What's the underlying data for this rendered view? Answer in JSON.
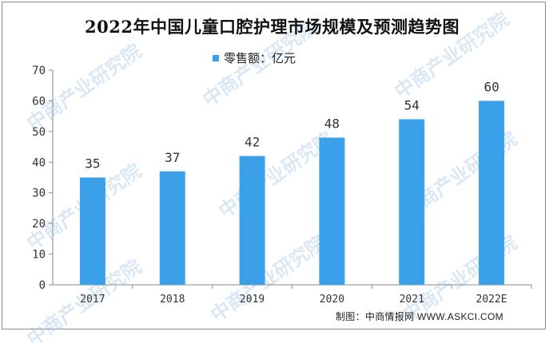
{
  "chart_data": {
    "type": "bar",
    "title": "2022年中国儿童口腔护理市场规模及预测趋势图",
    "legend": "零售额：亿元",
    "legend_position": "top-center",
    "categories": [
      "2017",
      "2018",
      "2019",
      "2020",
      "2021",
      "2022E"
    ],
    "series": [
      {
        "name": "零售额：亿元",
        "values": [
          35,
          37,
          42,
          48,
          54,
          60
        ]
      }
    ],
    "ylim": [
      0,
      70
    ],
    "yticks": [
      0,
      10,
      20,
      30,
      40,
      50,
      60,
      70
    ],
    "grid": false,
    "bar_color": "#3aa0ea"
  },
  "credit": "制图：中商情报网 WWW.ASKCI.COM",
  "watermark_text": "中商产业研究院"
}
